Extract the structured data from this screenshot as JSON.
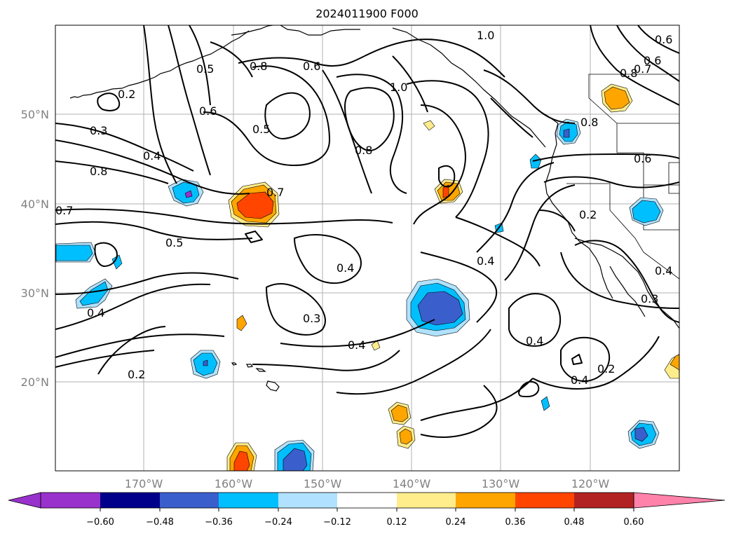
{
  "title": "2024011900 F000",
  "lat_labels": [
    "50°N",
    "40°N",
    "30°N",
    "20°N"
  ],
  "lon_labels": [
    "170°W",
    "160°W",
    "150°W",
    "140°W",
    "130°W",
    "120°W"
  ],
  "contour_labels": [
    "1.0",
    "0.6",
    "0.7",
    "0.6",
    "0.8",
    "0.5",
    "0.8",
    "0.6",
    "1.0",
    "0.2",
    "0.6",
    "0.5",
    "0.8",
    "0.3",
    "0.4",
    "0.8",
    "0.8",
    "0.6",
    "0.7",
    "0.7",
    "0.2",
    "0.5",
    "0.4",
    "0.4",
    "0.4",
    "0.3",
    "0.4",
    "0.3",
    "0.4",
    "0.4",
    "0.2",
    "0.4",
    "0.2"
  ],
  "colorbar": {
    "ticks": [
      "−0.60",
      "−0.48",
      "−0.36",
      "−0.24",
      "−0.12",
      "0.12",
      "0.24",
      "0.36",
      "0.48",
      "0.60"
    ],
    "colors": [
      "#9932cc",
      "#00008b",
      "#3a5fcd",
      "#00bfff",
      "#b0e2ff",
      "#ffffff",
      "#ffec8b",
      "#ffa500",
      "#ff4500",
      "#b22222",
      "#ff82ab"
    ]
  },
  "fill_colors": {
    "blue_outer": "#b0e2ff",
    "blue_mid": "#00bfff",
    "blue_inner": "#3a5fcd",
    "blue_core": "#9932cc",
    "warm_outer": "#ffec8b",
    "warm_mid": "#ffa500",
    "warm_inner": "#ff4500"
  }
}
